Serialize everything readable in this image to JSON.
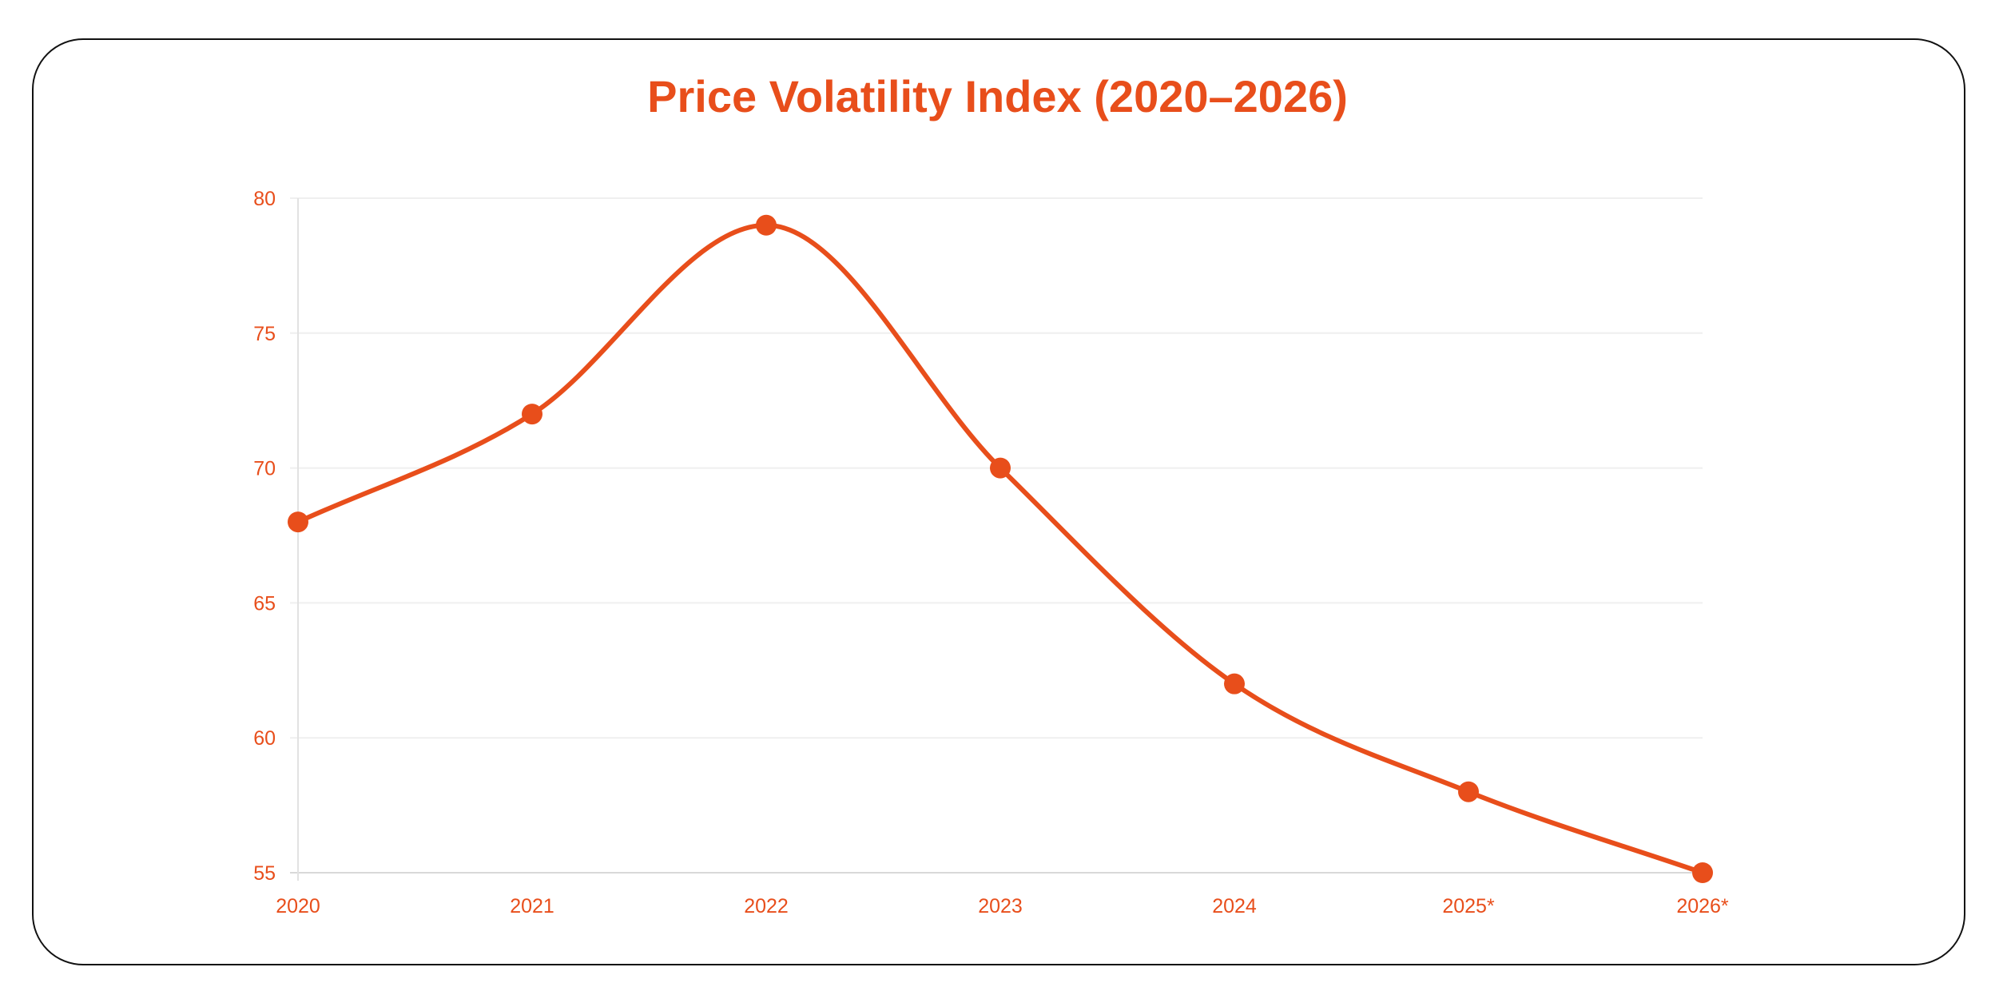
{
  "chart_data": {
    "type": "line",
    "title": "Price Volatility Index (2020–2026)",
    "xlabel": "",
    "ylabel": "",
    "categories": [
      "2020",
      "2021",
      "2022",
      "2023",
      "2024",
      "2025*",
      "2026*"
    ],
    "series": [
      {
        "values": [
          68,
          72,
          79,
          70,
          62,
          58,
          55
        ]
      }
    ],
    "ylim": [
      55,
      80
    ],
    "yticks": [
      "55",
      "60",
      "65",
      "70",
      "75",
      "80"
    ],
    "grid": true,
    "legend": "none",
    "color": "#e84e1b",
    "smooth": true
  }
}
